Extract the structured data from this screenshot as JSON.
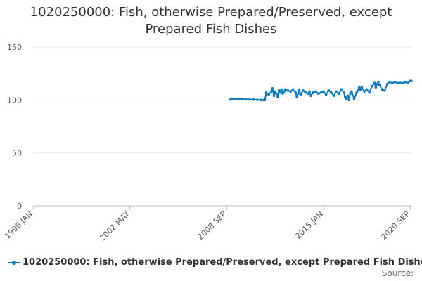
{
  "chart_data": {
    "type": "line",
    "title": "1020250000: Fish, otherwise Prepared/Preserved, except Prepared Fish Dishes",
    "source_label": "Source:",
    "xlabel": "",
    "ylabel": "",
    "ylim": [
      0,
      150
    ],
    "yticks": [
      0,
      50,
      100,
      150
    ],
    "xlim": [
      "1996-01",
      "2020-10"
    ],
    "xticks": [
      {
        "date": "1996-01",
        "label": "1996 JAN"
      },
      {
        "date": "2002-05",
        "label": "2002 MAY"
      },
      {
        "date": "2008-09",
        "label": "2008 SEP"
      },
      {
        "date": "2015-01",
        "label": "2015 JAN"
      },
      {
        "date": "2020-09",
        "label": "2020 SEP"
      }
    ],
    "grid": true,
    "legend_position": "bottom-left",
    "series": [
      {
        "name": "1020250000: Fish, otherwise Prepared/Preserved, except Prepared Fish Dishes",
        "color": "#0b7bbd",
        "x": [
          "2008-12",
          "2009-01",
          "2009-03",
          "2009-06",
          "2009-09",
          "2009-12",
          "2010-03",
          "2010-06",
          "2010-09",
          "2010-12",
          "2011-02",
          "2011-03",
          "2011-04",
          "2011-06",
          "2011-08",
          "2011-09",
          "2011-10",
          "2011-11",
          "2011-12",
          "2012-01",
          "2012-02",
          "2012-03",
          "2012-04",
          "2012-05",
          "2012-06",
          "2012-07",
          "2012-09",
          "2012-11",
          "2013-01",
          "2013-03",
          "2013-04",
          "2013-05",
          "2013-06",
          "2013-07",
          "2013-09",
          "2013-11",
          "2014-01",
          "2014-02",
          "2014-03",
          "2014-05",
          "2014-07",
          "2014-09",
          "2014-11",
          "2015-01",
          "2015-03",
          "2015-05",
          "2015-07",
          "2015-09",
          "2015-11",
          "2016-01",
          "2016-03",
          "2016-05",
          "2016-06",
          "2016-07",
          "2016-08",
          "2016-09",
          "2016-10",
          "2016-11",
          "2017-01",
          "2017-03",
          "2017-04",
          "2017-05",
          "2017-06",
          "2017-07",
          "2017-09",
          "2017-11",
          "2018-01",
          "2018-03",
          "2018-05",
          "2018-06",
          "2018-07",
          "2018-08",
          "2018-09",
          "2018-11",
          "2019-01",
          "2019-03",
          "2019-05",
          "2019-07",
          "2019-09",
          "2019-11",
          "2020-01",
          "2020-03",
          "2020-05",
          "2020-07",
          "2020-09",
          "2020-10"
        ],
        "values": [
          100.5,
          100.8,
          101,
          101,
          100.8,
          100.6,
          100.5,
          100.4,
          100.2,
          100,
          99.8,
          100,
          107,
          105,
          108,
          111,
          104,
          108,
          106,
          103,
          109,
          107,
          110,
          106,
          108,
          110,
          109,
          108,
          110,
          107,
          103,
          106,
          110,
          105,
          109,
          107,
          106,
          108,
          104,
          107,
          108,
          106,
          107,
          108,
          105,
          109,
          107,
          104,
          108,
          106,
          110,
          107,
          103,
          101,
          104,
          100,
          106,
          108,
          101,
          107,
          109,
          112,
          110,
          112,
          108,
          110,
          107,
          113,
          116,
          112,
          115,
          117,
          114,
          110,
          109,
          115,
          117,
          116,
          117,
          116,
          116,
          116,
          117,
          116,
          118,
          118
        ]
      }
    ]
  }
}
